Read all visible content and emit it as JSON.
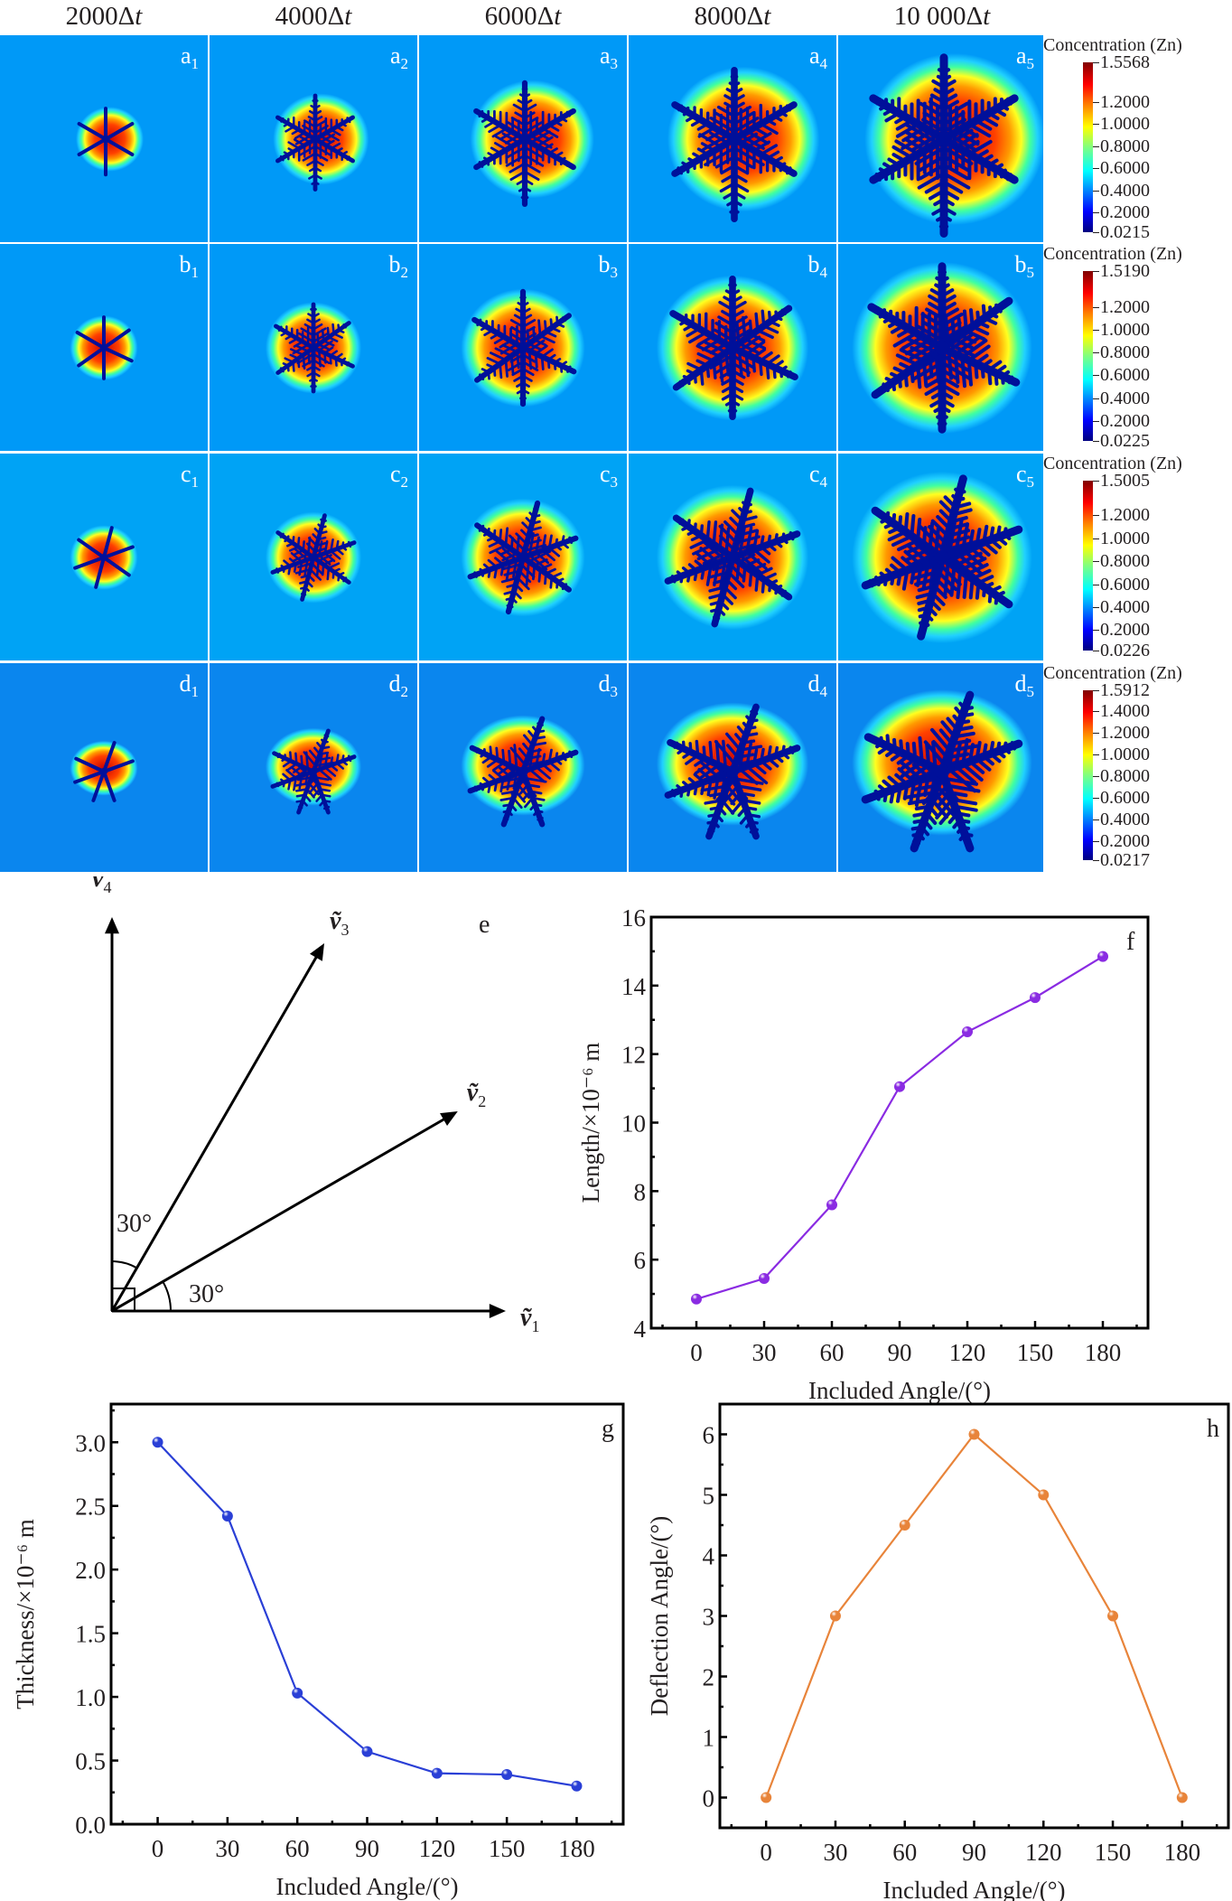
{
  "figure": {
    "column_titles": [
      "2000Δt",
      "4000Δt",
      "6000Δt",
      "8000Δt",
      "10 000Δt"
    ],
    "column_steps": [
      2000,
      4000,
      6000,
      8000,
      10000
    ],
    "rows": [
      {
        "letter": "a",
        "labels": [
          "a",
          "a",
          "a",
          "a",
          "a"
        ],
        "subs": [
          "1",
          "2",
          "3",
          "4",
          "5"
        ],
        "background": "#0099f7"
      },
      {
        "letter": "b",
        "labels": [
          "b",
          "b",
          "b",
          "b",
          "b"
        ],
        "subs": [
          "1",
          "2",
          "3",
          "4",
          "5"
        ],
        "background": "#0099f7"
      },
      {
        "letter": "c",
        "labels": [
          "c",
          "c",
          "c",
          "c",
          "c"
        ],
        "subs": [
          "1",
          "2",
          "3",
          "4",
          "5"
        ],
        "background": "#00a3f5"
      },
      {
        "letter": "d",
        "labels": [
          "d",
          "d",
          "d",
          "d",
          "d"
        ],
        "subs": [
          "1",
          "2",
          "3",
          "4",
          "5"
        ],
        "background": "#0a86ee"
      }
    ],
    "colorbars": [
      {
        "title": "Concentration (Zn)",
        "max": "1.5568",
        "min": "0.0215",
        "ticks": [
          "1.2000",
          "1.0000",
          "0.8000",
          "0.6000",
          "0.4000",
          "0.2000"
        ],
        "tick_values": [
          1.2,
          1.0,
          0.8,
          0.6,
          0.4,
          0.2
        ],
        "max_value": 1.5568,
        "min_value": 0.0215
      },
      {
        "title": "Concentration (Zn)",
        "max": "1.5190",
        "min": "0.0225",
        "ticks": [
          "1.2000",
          "1.0000",
          "0.8000",
          "0.6000",
          "0.4000",
          "0.2000"
        ],
        "tick_values": [
          1.2,
          1.0,
          0.8,
          0.6,
          0.4,
          0.2
        ],
        "max_value": 1.519,
        "min_value": 0.0225
      },
      {
        "title": "Concentration (Zn)",
        "max": "1.5005",
        "min": "0.0226",
        "ticks": [
          "1.2000",
          "1.0000",
          "0.8000",
          "0.6000",
          "0.4000",
          "0.2000"
        ],
        "tick_values": [
          1.2,
          1.0,
          0.8,
          0.6,
          0.4,
          0.2
        ],
        "max_value": 1.5005,
        "min_value": 0.0226
      },
      {
        "title": "Concentration (Zn)",
        "max": "1.5912",
        "min": "0.0217",
        "ticks": [
          "1.4000",
          "1.2000",
          "1.0000",
          "0.8000",
          "0.6000",
          "0.4000",
          "0.2000"
        ],
        "tick_values": [
          1.4,
          1.2,
          1.0,
          0.8,
          0.6,
          0.4,
          0.2
        ],
        "max_value": 1.5912,
        "min_value": 0.0217
      }
    ]
  },
  "diagram_e": {
    "label": "e",
    "vectors": [
      {
        "name": "v1",
        "symbol": "ṽ",
        "sub": "1",
        "angle_deg": 0
      },
      {
        "name": "v2",
        "symbol": "ṽ",
        "sub": "2",
        "angle_deg": 30
      },
      {
        "name": "v3",
        "symbol": "ṽ",
        "sub": "3",
        "angle_deg": 60
      },
      {
        "name": "v4",
        "symbol": "ṽ",
        "sub": "4",
        "angle_deg": 90
      }
    ],
    "angle_labels": [
      "30°",
      "30°"
    ]
  },
  "chart_data": [
    {
      "panel": "f",
      "type": "line",
      "title": "",
      "xlabel": "Included Angle/(°)",
      "ylabel": "Length/×10⁻⁶ m",
      "x": [
        0,
        30,
        60,
        90,
        120,
        150,
        180
      ],
      "series": [
        {
          "name": "Length",
          "values": [
            4.85,
            5.45,
            7.6,
            11.05,
            12.65,
            13.65,
            14.85
          ],
          "color": "#8a2be2"
        }
      ],
      "xticks": [
        "0",
        "30",
        "60",
        "90",
        "120",
        "150",
        "180"
      ],
      "yticks": [
        "4",
        "6",
        "8",
        "10",
        "12",
        "14",
        "16"
      ],
      "xlim": [
        -20,
        200
      ],
      "ylim": [
        4,
        16
      ],
      "grid": false,
      "legend": "none"
    },
    {
      "panel": "g",
      "type": "line",
      "title": "",
      "xlabel": "Included Angle/(°)",
      "ylabel": "Thickness/×10⁻⁶ m",
      "x": [
        0,
        30,
        60,
        90,
        120,
        150,
        180
      ],
      "series": [
        {
          "name": "Thickness",
          "values": [
            3.0,
            2.42,
            1.03,
            0.57,
            0.4,
            0.39,
            0.3
          ],
          "color": "#2a3fd6"
        }
      ],
      "xticks": [
        "0",
        "30",
        "60",
        "90",
        "120",
        "150",
        "180"
      ],
      "yticks": [
        "0.0",
        "0.5",
        "1.0",
        "1.5",
        "2.0",
        "2.5",
        "3.0"
      ],
      "xlim": [
        -20,
        200
      ],
      "ylim": [
        0,
        3.3
      ],
      "grid": false,
      "legend": "none"
    },
    {
      "panel": "h",
      "type": "line",
      "title": "",
      "xlabel": "Included Angle/(°)",
      "ylabel": "Deflection Angle/(°)",
      "x": [
        0,
        30,
        60,
        90,
        120,
        150,
        180
      ],
      "series": [
        {
          "name": "Deflection Angle",
          "values": [
            0,
            3,
            4.5,
            6,
            5,
            3,
            0
          ],
          "color": "#e8843a"
        }
      ],
      "xticks": [
        "0",
        "30",
        "60",
        "90",
        "120",
        "150",
        "180"
      ],
      "yticks": [
        "0",
        "1",
        "2",
        "3",
        "4",
        "5",
        "6"
      ],
      "xlim": [
        -20,
        200
      ],
      "ylim": [
        -0.5,
        6.5
      ],
      "grid": false,
      "legend": "none"
    }
  ]
}
